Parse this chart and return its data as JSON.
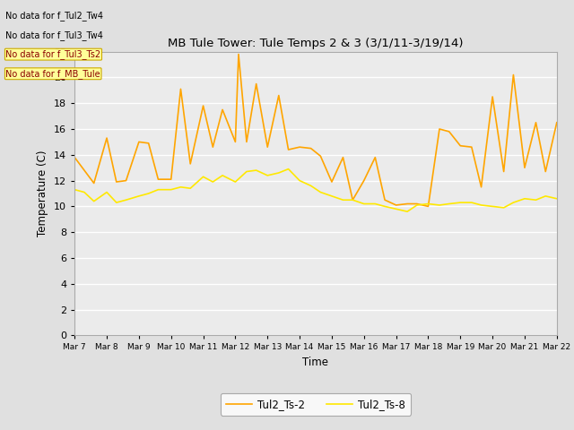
{
  "title": "MB Tule Tower: Tule Temps 2 & 3 (3/1/11-3/19/14)",
  "xlabel": "Time",
  "ylabel": "Temperature (C)",
  "ylim": [
    0,
    22
  ],
  "yticks": [
    0,
    2,
    4,
    6,
    8,
    10,
    12,
    14,
    16,
    18,
    20,
    22
  ],
  "x_labels": [
    "Mar 7",
    "Mar 8",
    "Mar 9",
    "Mar 10",
    "Mar 11",
    "Mar 12",
    "Mar 13",
    "Mar 14",
    "Mar 15",
    "Mar 16",
    "Mar 17",
    "Mar 18",
    "Mar 19",
    "Mar 20",
    "Mar 21",
    "Mar 22"
  ],
  "ts2_color": "#FFA500",
  "ts8_color": "#FFE800",
  "legend_label_ts2": "Tul2_Ts-2",
  "legend_label_ts8": "Tul2_Ts-8",
  "background_color": "#E0E0E0",
  "plot_bg_color": "#EBEBEB",
  "annotation_lines": [
    "No data for f_Tul2_Tw4",
    "No data for f_Tul3_Tw4",
    "No data for f_Tul3_Ts2",
    "No data for f_MB_Tule"
  ],
  "ts2_x": [
    0,
    0.3,
    0.6,
    1.0,
    1.3,
    1.6,
    2.0,
    2.3,
    2.6,
    3.0,
    3.3,
    3.6,
    4.0,
    4.3,
    4.6,
    5.0,
    5.1,
    5.35,
    5.65,
    6.0,
    6.35,
    6.65,
    7.0,
    7.35,
    7.65,
    8.0,
    8.35,
    8.65,
    9.0,
    9.35,
    9.65,
    10.0,
    10.35,
    10.65,
    11.0,
    11.35,
    11.65,
    12.0,
    12.35,
    12.65,
    13.0,
    13.35,
    13.65,
    14.0,
    14.35,
    14.65,
    15.0
  ],
  "ts2_y": [
    13.8,
    12.8,
    11.8,
    15.3,
    11.9,
    12.0,
    15.0,
    14.9,
    12.1,
    12.1,
    19.1,
    13.3,
    17.8,
    14.6,
    17.5,
    15.0,
    21.8,
    15.0,
    19.5,
    14.6,
    18.6,
    14.4,
    14.6,
    14.5,
    13.9,
    11.9,
    13.8,
    10.5,
    12.0,
    13.8,
    10.5,
    10.1,
    10.2,
    10.2,
    10.0,
    16.0,
    15.8,
    14.7,
    14.6,
    11.5,
    18.5,
    12.7,
    20.2,
    13.0,
    16.5,
    12.7,
    16.5
  ],
  "ts8_x": [
    0,
    0.3,
    0.6,
    1.0,
    1.3,
    1.6,
    2.0,
    2.3,
    2.6,
    3.0,
    3.3,
    3.6,
    4.0,
    4.3,
    4.6,
    5.0,
    5.35,
    5.65,
    6.0,
    6.35,
    6.65,
    7.0,
    7.35,
    7.65,
    8.0,
    8.35,
    8.65,
    9.0,
    9.35,
    9.65,
    10.0,
    10.35,
    10.65,
    11.0,
    11.35,
    11.65,
    12.0,
    12.35,
    12.65,
    13.0,
    13.35,
    13.65,
    14.0,
    14.35,
    14.65,
    15.0
  ],
  "ts8_y": [
    11.3,
    11.1,
    10.4,
    11.1,
    10.3,
    10.5,
    10.8,
    11.0,
    11.3,
    11.3,
    11.5,
    11.4,
    12.3,
    11.9,
    12.4,
    11.9,
    12.7,
    12.8,
    12.4,
    12.6,
    12.9,
    12.0,
    11.6,
    11.1,
    10.8,
    10.5,
    10.5,
    10.2,
    10.2,
    10.0,
    9.8,
    9.6,
    10.1,
    10.2,
    10.1,
    10.2,
    10.3,
    10.3,
    10.1,
    10.0,
    9.9,
    10.3,
    10.6,
    10.5,
    10.8,
    10.6
  ]
}
